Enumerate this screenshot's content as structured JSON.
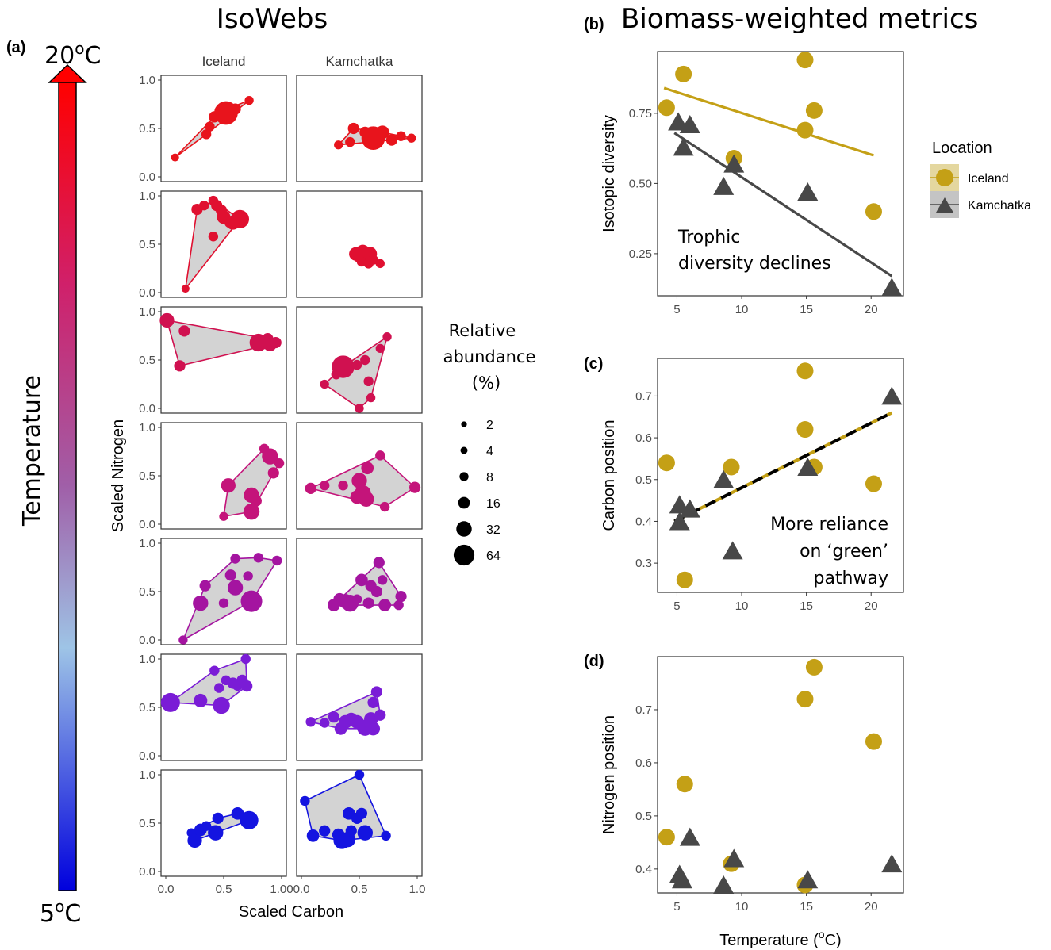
{
  "figure": {
    "left_title": "IsoWebs",
    "right_title": "Biomass-weighted metrics",
    "label_a": "(a)",
    "label_b": "(b)",
    "label_c": "(c)",
    "label_d": "(d)",
    "temp_high": "20",
    "temp_low": "5",
    "temp_unit": "C",
    "temp_deg": "o",
    "temperature_axis_label": "Temperature",
    "gradient_colors": [
      "#0000dd",
      "#9ec4e6",
      "#a05fa8",
      "#d0206a",
      "#ff0000"
    ]
  },
  "isowebs": {
    "columns": [
      "Iceland",
      "Kamchatka"
    ],
    "y_axis_label": "Scaled Nitrogen",
    "x_axis_label": "Scaled Carbon",
    "x_ticks": [
      "0.0",
      "0.5",
      "1.0"
    ],
    "x_ticks_last_first_panel": "1.00",
    "y_ticks": [
      "0.0",
      "0.5",
      "1.0"
    ],
    "hull_fill": "#d3d3d3",
    "rows": [
      {
        "color": "#e8141c",
        "iceland": [
          [
            0.08,
            0.2,
            2
          ],
          [
            0.35,
            0.44,
            4
          ],
          [
            0.38,
            0.52,
            4
          ],
          [
            0.42,
            0.62,
            6
          ],
          [
            0.48,
            0.68,
            10
          ],
          [
            0.52,
            0.66,
            40
          ],
          [
            0.6,
            0.7,
            6
          ],
          [
            0.72,
            0.79,
            3
          ]
        ],
        "kamchatka": [
          [
            0.32,
            0.33,
            3
          ],
          [
            0.42,
            0.36,
            4
          ],
          [
            0.45,
            0.5,
            6
          ],
          [
            0.55,
            0.46,
            6
          ],
          [
            0.62,
            0.4,
            40
          ],
          [
            0.7,
            0.46,
            10
          ],
          [
            0.78,
            0.38,
            6
          ],
          [
            0.86,
            0.42,
            4
          ],
          [
            0.95,
            0.4,
            3
          ]
        ]
      },
      {
        "color": "#e01030",
        "iceland": [
          [
            0.17,
            0.04,
            2
          ],
          [
            0.27,
            0.86,
            6
          ],
          [
            0.33,
            0.9,
            4
          ],
          [
            0.41,
            0.95,
            4
          ],
          [
            0.44,
            0.9,
            6
          ],
          [
            0.48,
            0.85,
            6
          ],
          [
            0.5,
            0.78,
            10
          ],
          [
            0.58,
            0.72,
            10
          ],
          [
            0.64,
            0.76,
            22
          ],
          [
            0.41,
            0.58,
            4
          ],
          [
            0.55,
            0.72,
            4
          ]
        ],
        "kamchatka": [
          [
            0.47,
            0.4,
            10
          ],
          [
            0.5,
            0.38,
            10
          ],
          [
            0.53,
            0.42,
            12
          ],
          [
            0.56,
            0.36,
            10
          ],
          [
            0.59,
            0.4,
            12
          ],
          [
            0.62,
            0.34,
            4
          ],
          [
            0.68,
            0.3,
            3
          ],
          [
            0.52,
            0.32,
            4
          ],
          [
            0.58,
            0.3,
            4
          ]
        ]
      },
      {
        "color": "#d01150",
        "iceland": [
          [
            0.01,
            0.91,
            12
          ],
          [
            0.12,
            0.44,
            6
          ],
          [
            0.16,
            0.8,
            6
          ],
          [
            0.84,
            0.68,
            10
          ],
          [
            0.88,
            0.72,
            6
          ],
          [
            0.8,
            0.68,
            20
          ],
          [
            0.9,
            0.66,
            10
          ],
          [
            0.95,
            0.68,
            6
          ]
        ],
        "kamchatka": [
          [
            0.2,
            0.25,
            3
          ],
          [
            0.3,
            0.35,
            4
          ],
          [
            0.36,
            0.43,
            36
          ],
          [
            0.48,
            0.45,
            4
          ],
          [
            0.55,
            0.5,
            4
          ],
          [
            0.5,
            0.0,
            3
          ],
          [
            0.6,
            0.11,
            3
          ],
          [
            0.68,
            0.62,
            3
          ],
          [
            0.74,
            0.74,
            3
          ],
          [
            0.58,
            0.28,
            4
          ]
        ]
      },
      {
        "color": "#c4147a",
        "iceland": [
          [
            0.5,
            0.08,
            3
          ],
          [
            0.54,
            0.4,
            12
          ],
          [
            0.85,
            0.78,
            4
          ],
          [
            0.9,
            0.7,
            16
          ],
          [
            0.93,
            0.53,
            6
          ],
          [
            0.98,
            0.63,
            4
          ],
          [
            0.74,
            0.3,
            14
          ],
          [
            0.78,
            0.24,
            6
          ],
          [
            0.74,
            0.13,
            16
          ]
        ],
        "kamchatka": [
          [
            0.08,
            0.37,
            6
          ],
          [
            0.2,
            0.4,
            4
          ],
          [
            0.36,
            0.4,
            4
          ],
          [
            0.5,
            0.45,
            14
          ],
          [
            0.53,
            0.32,
            16
          ],
          [
            0.48,
            0.28,
            10
          ],
          [
            0.56,
            0.26,
            14
          ],
          [
            0.57,
            0.58,
            8
          ],
          [
            0.68,
            0.71,
            4
          ],
          [
            0.72,
            0.18,
            4
          ],
          [
            0.98,
            0.38,
            6
          ]
        ]
      },
      {
        "color": "#a414a0",
        "iceland": [
          [
            0.15,
            0.0,
            3
          ],
          [
            0.3,
            0.38,
            14
          ],
          [
            0.34,
            0.56,
            6
          ],
          [
            0.5,
            0.38,
            4
          ],
          [
            0.56,
            0.67,
            6
          ],
          [
            0.6,
            0.84,
            4
          ],
          [
            0.6,
            0.54,
            14
          ],
          [
            0.71,
            0.66,
            4
          ],
          [
            0.74,
            0.4,
            32
          ],
          [
            0.8,
            0.85,
            4
          ],
          [
            0.96,
            0.82,
            4
          ]
        ],
        "kamchatka": [
          [
            0.28,
            0.36,
            8
          ],
          [
            0.33,
            0.42,
            8
          ],
          [
            0.38,
            0.4,
            12
          ],
          [
            0.42,
            0.38,
            18
          ],
          [
            0.48,
            0.42,
            4
          ],
          [
            0.52,
            0.62,
            8
          ],
          [
            0.6,
            0.56,
            6
          ],
          [
            0.65,
            0.5,
            6
          ],
          [
            0.67,
            0.8,
            6
          ],
          [
            0.72,
            0.36,
            8
          ],
          [
            0.58,
            0.38,
            6
          ],
          [
            0.7,
            0.62,
            4
          ],
          [
            0.86,
            0.45,
            6
          ],
          [
            0.84,
            0.36,
            4
          ]
        ]
      },
      {
        "color": "#7a1cd6",
        "iceland": [
          [
            0.04,
            0.55,
            24
          ],
          [
            0.3,
            0.57,
            10
          ],
          [
            0.42,
            0.88,
            4
          ],
          [
            0.46,
            0.7,
            4
          ],
          [
            0.48,
            0.52,
            18
          ],
          [
            0.52,
            0.78,
            4
          ],
          [
            0.58,
            0.75,
            6
          ],
          [
            0.62,
            0.73,
            6
          ],
          [
            0.66,
            0.78,
            6
          ],
          [
            0.7,
            0.72,
            6
          ],
          [
            0.69,
            1.0,
            4
          ]
        ],
        "kamchatka": [
          [
            0.08,
            0.35,
            4
          ],
          [
            0.2,
            0.34,
            4
          ],
          [
            0.28,
            0.4,
            6
          ],
          [
            0.34,
            0.28,
            8
          ],
          [
            0.38,
            0.35,
            10
          ],
          [
            0.43,
            0.38,
            8
          ],
          [
            0.48,
            0.35,
            10
          ],
          [
            0.55,
            0.29,
            16
          ],
          [
            0.6,
            0.38,
            10
          ],
          [
            0.62,
            0.55,
            6
          ],
          [
            0.65,
            0.66,
            6
          ],
          [
            0.68,
            0.42,
            6
          ],
          [
            0.62,
            0.28,
            10
          ],
          [
            0.58,
            0.32,
            8
          ]
        ]
      },
      {
        "color": "#1414e0",
        "iceland": [
          [
            0.22,
            0.4,
            3
          ],
          [
            0.25,
            0.32,
            12
          ],
          [
            0.3,
            0.43,
            8
          ],
          [
            0.35,
            0.47,
            4
          ],
          [
            0.43,
            0.4,
            14
          ],
          [
            0.45,
            0.55,
            6
          ],
          [
            0.62,
            0.6,
            8
          ],
          [
            0.72,
            0.53,
            22
          ]
        ],
        "kamchatka": [
          [
            0.03,
            0.73,
            4
          ],
          [
            0.1,
            0.37,
            8
          ],
          [
            0.2,
            0.42,
            6
          ],
          [
            0.32,
            0.38,
            8
          ],
          [
            0.35,
            0.32,
            18
          ],
          [
            0.4,
            0.33,
            14
          ],
          [
            0.41,
            0.6,
            8
          ],
          [
            0.43,
            0.42,
            6
          ],
          [
            0.48,
            0.55,
            6
          ],
          [
            0.52,
            0.6,
            6
          ],
          [
            0.55,
            0.4,
            14
          ],
          [
            0.5,
            1.0,
            4
          ],
          [
            0.73,
            0.37,
            4
          ]
        ]
      }
    ]
  },
  "size_legend": {
    "title_lines": [
      "Relative",
      "abundance",
      "(%)"
    ],
    "entries": [
      {
        "label": "2",
        "value": 2
      },
      {
        "label": "4",
        "value": 4
      },
      {
        "label": "8",
        "value": 8
      },
      {
        "label": "16",
        "value": 16
      },
      {
        "label": "32",
        "value": 32
      },
      {
        "label": "64",
        "value": 64
      }
    ]
  },
  "location_legend": {
    "title": "Location",
    "iceland_label": "Iceland",
    "kamchatka_label": "Kamchatka",
    "iceland_color": "#c4a016",
    "kamchatka_color": "#484848"
  },
  "chart_data": [
    {
      "panel": "(b)",
      "type": "scatter",
      "ylabel": "Isotopic diversity",
      "xlim": [
        3.5,
        22.5
      ],
      "ylim": [
        0.1,
        0.97
      ],
      "x_ticks": [
        5,
        10,
        15,
        20
      ],
      "y_ticks": [
        0.25,
        0.5,
        0.75
      ],
      "y_tick_labels": [
        "0.25",
        "0.50",
        "0.75"
      ],
      "annotation": [
        "Trophic",
        "diversity declines"
      ],
      "series": [
        {
          "name": "Iceland",
          "points": [
            [
              4.2,
              0.77
            ],
            [
              5.5,
              0.89
            ],
            [
              9.4,
              0.59
            ],
            [
              14.9,
              0.94
            ],
            [
              15.6,
              0.76
            ],
            [
              14.9,
              0.69
            ],
            [
              20.2,
              0.4
            ]
          ],
          "fit": [
            [
              4,
              0.84
            ],
            [
              20.2,
              0.6
            ]
          ],
          "fit_style": "solid"
        },
        {
          "name": "Kamchatka",
          "points": [
            [
              5.1,
              0.72
            ],
            [
              6,
              0.71
            ],
            [
              5.5,
              0.63
            ],
            [
              9.4,
              0.57
            ],
            [
              8.6,
              0.49
            ],
            [
              15.1,
              0.47
            ],
            [
              21.6,
              0.13
            ]
          ],
          "fit": [
            [
              4.8,
              0.68
            ],
            [
              21.6,
              0.17
            ]
          ],
          "fit_style": "solid"
        }
      ]
    },
    {
      "panel": "(c)",
      "type": "scatter",
      "ylabel": "Carbon position",
      "xlim": [
        3.5,
        22.5
      ],
      "ylim": [
        0.23,
        0.79
      ],
      "x_ticks": [
        5,
        10,
        15,
        20
      ],
      "y_ticks": [
        0.3,
        0.4,
        0.5,
        0.6,
        0.7
      ],
      "y_tick_labels": [
        "0.3",
        "0.4",
        "0.5",
        "0.6",
        "0.7"
      ],
      "annotation": [
        "More reliance",
        "on ‘green’",
        "pathway"
      ],
      "series": [
        {
          "name": "Iceland",
          "points": [
            [
              4.2,
              0.54
            ],
            [
              5.6,
              0.26
            ],
            [
              9.2,
              0.53
            ],
            [
              14.9,
              0.76
            ],
            [
              14.9,
              0.62
            ],
            [
              15.6,
              0.53
            ],
            [
              20.2,
              0.49
            ]
          ]
        },
        {
          "name": "Kamchatka",
          "points": [
            [
              5.2,
              0.44
            ],
            [
              6,
              0.43
            ],
            [
              5.2,
              0.4
            ],
            [
              8.6,
              0.5
            ],
            [
              9.3,
              0.33
            ],
            [
              15.1,
              0.53
            ],
            [
              21.6,
              0.7
            ]
          ]
        }
      ],
      "fit": [
        [
          4.8,
          0.4
        ],
        [
          21.6,
          0.66
        ]
      ],
      "fit_style": "dashed"
    },
    {
      "panel": "(d)",
      "type": "scatter",
      "ylabel": "Nitrogen position",
      "xlabel": "Temperature (",
      "xlabel_sup": "o",
      "xlabel_tail": "C)",
      "xlim": [
        3.5,
        22.5
      ],
      "ylim": [
        0.355,
        0.8
      ],
      "x_ticks": [
        5,
        10,
        15,
        20
      ],
      "y_ticks": [
        0.4,
        0.5,
        0.6,
        0.7
      ],
      "y_tick_labels": [
        "0.4",
        "0.5",
        "0.6",
        "0.7"
      ],
      "series": [
        {
          "name": "Iceland",
          "points": [
            [
              4.2,
              0.46
            ],
            [
              5.6,
              0.56
            ],
            [
              9.2,
              0.41
            ],
            [
              14.9,
              0.72
            ],
            [
              15.6,
              0.78
            ],
            [
              14.9,
              0.37
            ],
            [
              20.2,
              0.64
            ]
          ]
        },
        {
          "name": "Kamchatka",
          "points": [
            [
              5.2,
              0.39
            ],
            [
              5.4,
              0.38
            ],
            [
              6,
              0.46
            ],
            [
              8.6,
              0.37
            ],
            [
              9.4,
              0.42
            ],
            [
              15.1,
              0.38
            ],
            [
              21.6,
              0.41
            ]
          ]
        }
      ]
    }
  ]
}
